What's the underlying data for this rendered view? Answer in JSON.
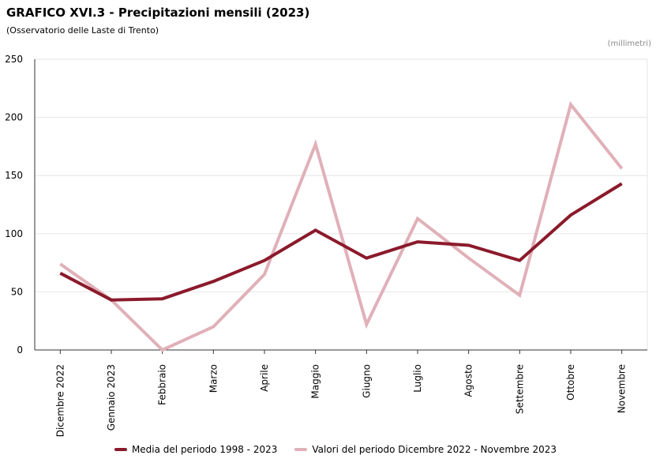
{
  "header": {
    "title": "GRAFICO XVI.3 - Precipitazioni mensili (2023)",
    "subtitle": "(Osservatorio delle Laste di Trento)",
    "unit": "(millimetri)"
  },
  "colors": {
    "series_1": "#8b1a2b",
    "series_2": "#e0b0b8",
    "grid": "#e6e6e6",
    "axis": "#333333"
  },
  "chart_data": {
    "type": "line",
    "title": "GRAFICO XVI.3 - Precipitazioni mensili (2023)",
    "subtitle": "(Osservatorio delle Laste di Trento)",
    "unit": "(millimetri)",
    "categories": [
      "Dicembre 2022",
      "Gennaio 2023",
      "Febbraio",
      "Marzo",
      "Aprile",
      "Maggio",
      "Giugno",
      "Luglio",
      "Agosto",
      "Settembre",
      "Ottobre",
      "Novembre"
    ],
    "y_ticks": [
      0,
      50,
      100,
      150,
      200,
      250
    ],
    "ylim": [
      0,
      250
    ],
    "grid": true,
    "legend_position": "bottom",
    "series": [
      {
        "name": "Media del periodo 1998 - 2023",
        "values": [
          66,
          43,
          44,
          59,
          77,
          103,
          79,
          93,
          90,
          77,
          116,
          143
        ]
      },
      {
        "name": "Valori del periodo Dicembre 2022 - Novembre 2023",
        "values": [
          74,
          43,
          0,
          20,
          65,
          177,
          22,
          113,
          79,
          47,
          211,
          156
        ]
      }
    ]
  }
}
